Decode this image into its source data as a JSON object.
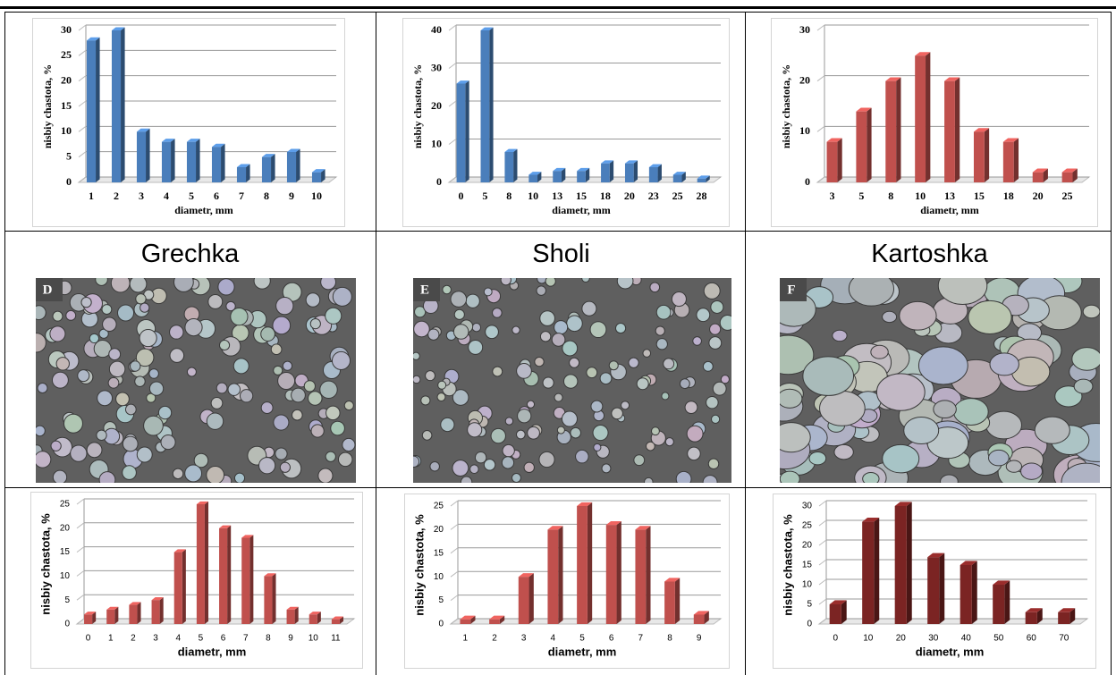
{
  "chart_data": [
    {
      "type": "bar",
      "categories": [
        "1",
        "2",
        "3",
        "4",
        "5",
        "6",
        "7",
        "8",
        "9",
        "10"
      ],
      "values": [
        28,
        30,
        10,
        8,
        8,
        7,
        3,
        5,
        6,
        2
      ],
      "color": "#4a7ebb",
      "ylim": [
        0,
        30
      ],
      "yticks": [
        0,
        5,
        10,
        15,
        20,
        25,
        30
      ],
      "grid": true,
      "ylabel": "nisbiy chastota, %",
      "xlabel": "diametr, mm"
    },
    {
      "type": "bar",
      "categories": [
        "0",
        "5",
        "8",
        "10",
        "13",
        "15",
        "18",
        "20",
        "23",
        "25",
        "28"
      ],
      "values": [
        26,
        40,
        8,
        2,
        3,
        3,
        5,
        5,
        4,
        2,
        1
      ],
      "color": "#4a7ebb",
      "ylim": [
        0,
        40
      ],
      "yticks": [
        0,
        10,
        20,
        30,
        40
      ],
      "grid": true,
      "ylabel": "nisbiy chastota, %",
      "xlabel": "diametr,  mm"
    },
    {
      "type": "bar",
      "categories": [
        "3",
        "5",
        "8",
        "10",
        "13",
        "15",
        "18",
        "20",
        "25"
      ],
      "values": [
        8,
        14,
        20,
        25,
        20,
        10,
        8,
        2,
        2
      ],
      "color": "#c0504d",
      "ylim": [
        0,
        30
      ],
      "yticks": [
        0,
        10,
        20,
        30
      ],
      "grid": true,
      "ylabel": "nisbiy chastota, %",
      "xlabel": "diametr,  mm"
    },
    {
      "type": "bar",
      "categories": [
        "0",
        "1",
        "2",
        "3",
        "4",
        "5",
        "6",
        "7",
        "8",
        "9",
        "10",
        "11"
      ],
      "values": [
        2,
        3,
        4,
        5,
        15,
        25,
        20,
        18,
        10,
        3,
        2,
        1
      ],
      "color": "#c0504d",
      "ylim": [
        0,
        25
      ],
      "yticks": [
        0,
        5,
        10,
        15,
        20,
        25
      ],
      "grid": true,
      "ylabel": "nisbiy chastota, %",
      "xlabel": "diametr, mm"
    },
    {
      "type": "bar",
      "categories": [
        "1",
        "2",
        "3",
        "4",
        "5",
        "6",
        "7",
        "8",
        "9"
      ],
      "values": [
        1,
        1,
        10,
        20,
        25,
        21,
        20,
        9,
        2
      ],
      "color": "#c0504d",
      "ylim": [
        0,
        25
      ],
      "yticks": [
        0,
        5,
        10,
        15,
        20,
        25
      ],
      "grid": true,
      "ylabel": "nisbiy chastota, %",
      "xlabel": "diametr, mm"
    },
    {
      "type": "bar",
      "categories": [
        "0",
        "10",
        "20",
        "30",
        "40",
        "50",
        "60",
        "70"
      ],
      "values": [
        5,
        26,
        30,
        17,
        15,
        10,
        3,
        3
      ],
      "color": "#7b2423",
      "ylim": [
        0,
        30
      ],
      "yticks": [
        0,
        5,
        10,
        15,
        20,
        25,
        30
      ],
      "grid": true,
      "ylabel": "nisbiy chastota, %",
      "xlabel": "diametr, mm"
    }
  ],
  "captions": [
    "Grechka",
    "Sholi",
    "Kartoshka"
  ],
  "images": [
    {
      "label": "D"
    },
    {
      "label": "E"
    },
    {
      "label": "F"
    }
  ]
}
